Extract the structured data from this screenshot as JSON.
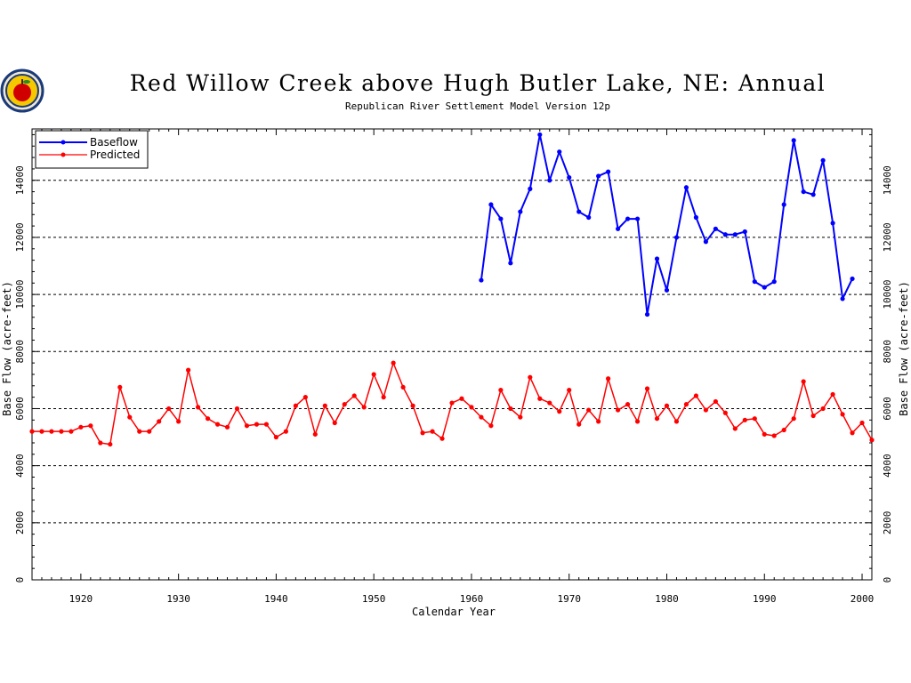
{
  "chart_data": {
    "type": "line",
    "title": "Red Willow Creek above Hugh Butler Lake, NE: Annual",
    "subtitle": "Republican River Settlement Model Version 12p",
    "xlabel": "Calendar Year",
    "ylabel": "Base Flow (acre-feet)",
    "xlim": [
      1915,
      2001
    ],
    "ylim": [
      0,
      15800
    ],
    "x_ticks": [
      1920,
      1930,
      1940,
      1950,
      1960,
      1970,
      1980,
      1990,
      2000
    ],
    "y_ticks": [
      0,
      2000,
      4000,
      6000,
      8000,
      10000,
      12000,
      14000
    ],
    "grid": "horizontal dashed",
    "legend": "top-left",
    "logo": "apple-emblem",
    "series": [
      {
        "name": "Baseflow",
        "color": "#0000ff",
        "x": [
          1961,
          1962,
          1963,
          1964,
          1965,
          1966,
          1967,
          1968,
          1969,
          1970,
          1971,
          1972,
          1973,
          1974,
          1975,
          1976,
          1977,
          1978,
          1979,
          1980,
          1981,
          1982,
          1983,
          1984,
          1985,
          1986,
          1987,
          1988,
          1989,
          1990,
          1991,
          1992,
          1993,
          1994,
          1995,
          1996,
          1997,
          1998,
          1999
        ],
        "values": [
          10500,
          13150,
          12650,
          11100,
          12900,
          13700,
          15600,
          14000,
          15000,
          14100,
          12900,
          12700,
          14150,
          14300,
          12300,
          12650,
          12650,
          9300,
          11250,
          10150,
          12000,
          13750,
          12700,
          11850,
          12300,
          12100,
          12100,
          12200,
          10450,
          10250,
          10450,
          13150,
          15400,
          13600,
          13500,
          14700,
          12500,
          9850,
          10550
        ]
      },
      {
        "name": "Predicted",
        "color": "#ff0000",
        "x": [
          1915,
          1916,
          1917,
          1918,
          1919,
          1920,
          1921,
          1922,
          1923,
          1924,
          1925,
          1926,
          1927,
          1928,
          1929,
          1930,
          1931,
          1932,
          1933,
          1934,
          1935,
          1936,
          1937,
          1938,
          1939,
          1940,
          1941,
          1942,
          1943,
          1944,
          1945,
          1946,
          1947,
          1948,
          1949,
          1950,
          1951,
          1952,
          1953,
          1954,
          1955,
          1956,
          1957,
          1958,
          1959,
          1960,
          1961,
          1962,
          1963,
          1964,
          1965,
          1966,
          1967,
          1968,
          1969,
          1970,
          1971,
          1972,
          1973,
          1974,
          1975,
          1976,
          1977,
          1978,
          1979,
          1980,
          1981,
          1982,
          1983,
          1984,
          1985,
          1986,
          1987,
          1988,
          1989,
          1990,
          1991,
          1992,
          1993,
          1994,
          1995,
          1996,
          1997,
          1998,
          1999,
          2000,
          2001
        ],
        "values": [
          5200,
          5200,
          5200,
          5200,
          5200,
          5350,
          5400,
          4800,
          4750,
          6750,
          5700,
          5200,
          5200,
          5550,
          6000,
          5550,
          7350,
          6050,
          5650,
          5450,
          5350,
          6000,
          5400,
          5450,
          5450,
          5000,
          5200,
          6100,
          6400,
          5100,
          6100,
          5500,
          6150,
          6450,
          6050,
          7200,
          6400,
          7600,
          6750,
          6100,
          5150,
          5200,
          4950,
          6200,
          6350,
          6050,
          5700,
          5400,
          6650,
          6000,
          5700,
          7100,
          6350,
          6200,
          5900,
          6650,
          5450,
          5950,
          5550,
          7050,
          5950,
          6150,
          5550,
          6700,
          5650,
          6100,
          5550,
          6150,
          6450,
          5950,
          6250,
          5850,
          5300,
          5600,
          5650,
          5100,
          5050,
          5250,
          5650,
          6950,
          5750,
          6000,
          6500,
          5800,
          5150,
          5500,
          4900
        ]
      }
    ]
  }
}
